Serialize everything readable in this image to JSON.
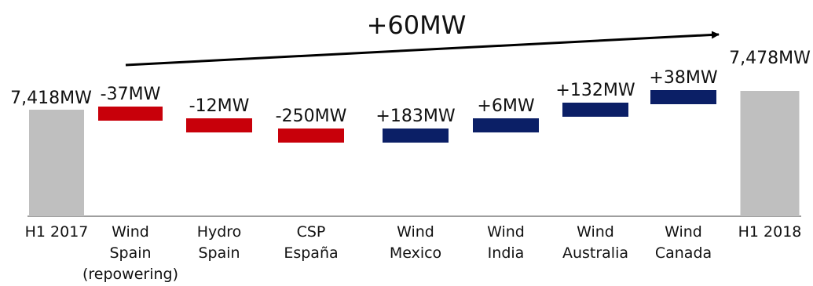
{
  "chart_data": {
    "type": "waterfall",
    "headline": "+60MW",
    "categories": [
      [
        "H1 2017"
      ],
      [
        "Wind",
        "Spain",
        "(repowering)"
      ],
      [
        "Hydro",
        "Spain"
      ],
      [
        "CSP",
        "España"
      ],
      [
        "Wind",
        "Mexico"
      ],
      [
        "Wind",
        "India"
      ],
      [
        "Wind",
        "Australia"
      ],
      [
        "Wind",
        "Canada"
      ],
      [
        "H1 2018"
      ]
    ],
    "values": [
      7418,
      -37,
      -12,
      -250,
      183,
      6,
      132,
      38,
      7478
    ],
    "kinds": [
      "total",
      "delta",
      "delta",
      "delta",
      "delta",
      "delta",
      "delta",
      "delta",
      "total"
    ],
    "labels": [
      "7,418MW",
      "-37MW",
      "-12MW",
      "-250MW",
      "+183MW",
      "+6MW",
      "+132MW",
      "+38MW",
      "7,478MW"
    ],
    "colors": {
      "total": "#bfbfbf",
      "decrease": "#c8000a",
      "increase": "#0b1f66",
      "arrow": "#000000",
      "axis": "#7f7f7f"
    }
  }
}
